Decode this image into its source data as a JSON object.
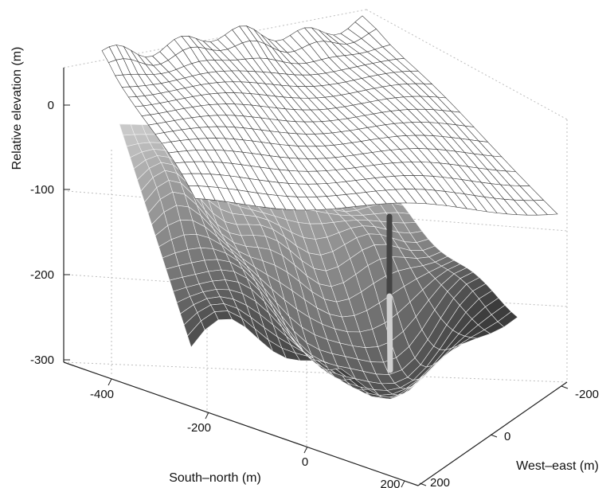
{
  "chart_data": {
    "type": "surface3d",
    "title": "",
    "axes": {
      "z": {
        "label": "Relative elevation (m)",
        "ticks": [
          0,
          -100,
          -200,
          -300
        ],
        "range": [
          -300,
          40
        ]
      },
      "south_north": {
        "label": "South–north (m)",
        "ticks": [
          -400,
          -200,
          0,
          200
        ],
        "range": [
          -500,
          200
        ]
      },
      "west_east": {
        "label": "West–east (m)",
        "ticks": [
          -200,
          0,
          200
        ],
        "range": [
          -300,
          200
        ]
      }
    },
    "grid": true,
    "series": [
      {
        "surface": "upper",
        "color": "#ffffff",
        "edge_color": "#3a3a3a",
        "elevation_range_m": [
          -60,
          50
        ]
      },
      {
        "surface": "lower",
        "color": "gradient #e6e6e6 to #3c3c3c",
        "edge_color": "#f2f2f2",
        "elevation_range_m": [
          -300,
          -60
        ]
      }
    ],
    "annotations": [
      {
        "kind": "vertical-bar",
        "color_upper": "#444444",
        "color_lower": "#d0d0d0",
        "elevation_range_m": [
          -300,
          -125
        ]
      }
    ]
  }
}
